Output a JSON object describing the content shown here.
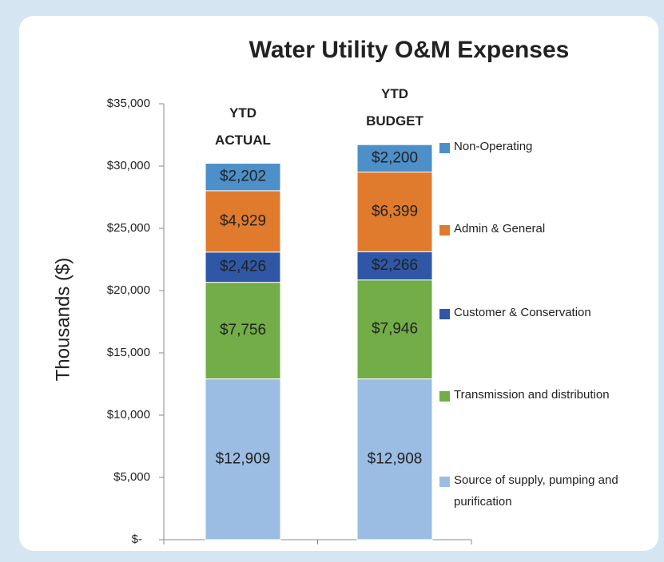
{
  "chart_data": {
    "type": "stacked_bar",
    "title": "Water Utility O&M Expenses",
    "y_label": "Thousands ($)",
    "categories": [
      "YTD ACTUAL",
      "YTD BUDGET"
    ],
    "ylim": [
      0,
      35000
    ],
    "yticks": [
      {
        "value": 0,
        "label": "$-"
      },
      {
        "value": 5000,
        "label": "$5,000"
      },
      {
        "value": 10000,
        "label": "$10,000"
      },
      {
        "value": 15000,
        "label": "$15,000"
      },
      {
        "value": 20000,
        "label": "$20,000"
      },
      {
        "value": 25000,
        "label": "$25,000"
      },
      {
        "value": 30000,
        "label": "$30,000"
      },
      {
        "value": 35000,
        "label": "$35,000"
      }
    ],
    "grid": false,
    "legend": "right",
    "series": [
      {
        "name": "Source of supply, pumping and purification",
        "color": "#9bbde3",
        "values": [
          12909,
          12908
        ],
        "value_labels": [
          "$12,909",
          "$12,908"
        ]
      },
      {
        "name": "Transmission and distribution",
        "color": "#72ad47",
        "values": [
          7756,
          7946
        ],
        "value_labels": [
          "$7,756",
          "$7,946"
        ]
      },
      {
        "name": "Customer & Conservation",
        "color": "#2f57a6",
        "values": [
          2426,
          2266
        ],
        "value_labels": [
          "$2,426",
          "$2,266"
        ]
      },
      {
        "name": "Admin & General",
        "color": "#e07b2d",
        "values": [
          4929,
          6399
        ],
        "value_labels": [
          "$4,929",
          "$6,399"
        ]
      },
      {
        "name": "Non-Operating",
        "color": "#4d8fc8",
        "values": [
          2202,
          2200
        ],
        "value_labels": [
          "$2,202",
          "$2,200"
        ]
      }
    ]
  }
}
